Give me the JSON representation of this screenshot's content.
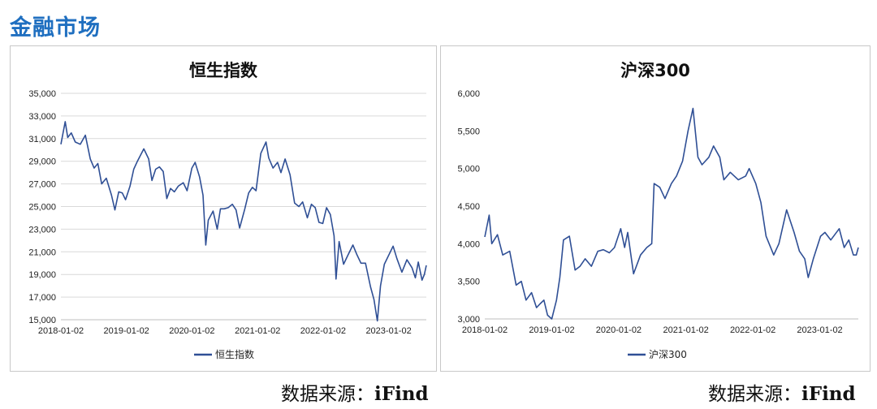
{
  "page": {
    "title": "金融市场",
    "source_label": "数据来源：",
    "source_name": "iFind"
  },
  "colors": {
    "line": "#2f4f95",
    "grid": "#d9d9d9",
    "title": "#1f6fc0"
  },
  "chart_data": [
    {
      "type": "line",
      "title": "恒生指数",
      "xlabel": "",
      "ylabel": "",
      "ylim": [
        15000,
        35000
      ],
      "y_ticks": [
        15000,
        17000,
        19000,
        21000,
        23000,
        25000,
        27000,
        29000,
        31000,
        33000,
        35000
      ],
      "y_tick_labels": [
        "15,000",
        "17,000",
        "19,000",
        "21,000",
        "23,000",
        "25,000",
        "27,000",
        "29,000",
        "31,000",
        "33,000",
        "35,000"
      ],
      "xlim": [
        "2018-01-02",
        "2023-07-31"
      ],
      "x_ticks": [
        "2018-01-02",
        "2019-01-02",
        "2020-01-02",
        "2021-01-02",
        "2022-01-02",
        "2023-01-02"
      ],
      "grid": true,
      "legend": "bottom",
      "series": [
        {
          "name": "恒生指数",
          "x": [
            "2018-01-02",
            "2018-01-26",
            "2018-02-09",
            "2018-03-01",
            "2018-03-23",
            "2018-04-20",
            "2018-05-18",
            "2018-06-15",
            "2018-07-06",
            "2018-07-27",
            "2018-08-17",
            "2018-09-12",
            "2018-10-11",
            "2018-10-30",
            "2018-11-20",
            "2018-12-10",
            "2018-12-28",
            "2019-01-22",
            "2019-02-12",
            "2019-03-04",
            "2019-04-09",
            "2019-05-06",
            "2019-05-24",
            "2019-06-14",
            "2019-07-05",
            "2019-07-26",
            "2019-08-15",
            "2019-09-05",
            "2019-09-26",
            "2019-10-18",
            "2019-11-15",
            "2019-12-06",
            "2020-01-02",
            "2020-01-20",
            "2020-02-14",
            "2020-03-04",
            "2020-03-19",
            "2020-04-02",
            "2020-04-29",
            "2020-05-22",
            "2020-06-09",
            "2020-06-30",
            "2020-07-22",
            "2020-08-14",
            "2020-09-04",
            "2020-09-24",
            "2020-10-23",
            "2020-11-13",
            "2020-12-04",
            "2020-12-24",
            "2021-01-20",
            "2021-02-18",
            "2021-03-05",
            "2021-03-29",
            "2021-04-23",
            "2021-05-12",
            "2021-06-04",
            "2021-07-02",
            "2021-07-27",
            "2021-08-20",
            "2021-09-10",
            "2021-10-06",
            "2021-10-29",
            "2021-11-19",
            "2021-12-10",
            "2021-12-31",
            "2022-01-21",
            "2022-02-11",
            "2022-03-04",
            "2022-03-15",
            "2022-04-01",
            "2022-04-26",
            "2022-05-20",
            "2022-06-17",
            "2022-07-08",
            "2022-08-01",
            "2022-08-26",
            "2022-09-23",
            "2022-10-12",
            "2022-10-31",
            "2022-11-18",
            "2022-12-09",
            "2023-01-27",
            "2023-02-17",
            "2023-03-17",
            "2023-04-14",
            "2023-05-12",
            "2023-05-31",
            "2023-06-16",
            "2023-07-07",
            "2023-07-20",
            "2023-07-31"
          ],
          "y": [
            30500,
            32500,
            31100,
            31500,
            30700,
            30500,
            31300,
            29200,
            28400,
            28800,
            27000,
            27500,
            26000,
            24700,
            26300,
            26200,
            25600,
            26800,
            28300,
            29000,
            30100,
            29200,
            27300,
            28300,
            28500,
            28100,
            25700,
            26600,
            26300,
            26800,
            27100,
            26400,
            28400,
            28900,
            27600,
            26000,
            21600,
            23800,
            24600,
            23000,
            24800,
            24800,
            24900,
            25200,
            24700,
            23100,
            24800,
            26200,
            26700,
            26400,
            29700,
            30700,
            29300,
            28400,
            28900,
            28000,
            29200,
            27800,
            25300,
            25000,
            25400,
            24000,
            25200,
            24900,
            23600,
            23500,
            24900,
            24300,
            22400,
            18600,
            21900,
            19900,
            20700,
            21600,
            20800,
            20000,
            20000,
            17900,
            16800,
            14900,
            18000,
            19900,
            21500,
            20400,
            19200,
            20300,
            19600,
            18700,
            20100,
            18500,
            19000,
            19800
          ]
        }
      ]
    },
    {
      "type": "line",
      "title": "沪深300",
      "xlabel": "",
      "ylabel": "",
      "ylim": [
        3000,
        6000
      ],
      "y_ticks": [
        3000,
        3500,
        4000,
        4500,
        5000,
        5500,
        6000
      ],
      "y_tick_labels": [
        "3,000",
        "3,500",
        "4,000",
        "4,500",
        "5,000",
        "5,500",
        "6,000"
      ],
      "xlim": [
        "2018-01-02",
        "2023-07-31"
      ],
      "x_ticks": [
        "2018-01-02",
        "2019-01-02",
        "2020-01-02",
        "2021-01-02",
        "2022-01-02",
        "2023-01-02"
      ],
      "grid": false,
      "legend": "bottom",
      "series": [
        {
          "name": "沪深300",
          "x": [
            "2018-01-02",
            "2018-01-26",
            "2018-02-09",
            "2018-03-12",
            "2018-04-10",
            "2018-05-18",
            "2018-06-22",
            "2018-07-20",
            "2018-08-15",
            "2018-09-14",
            "2018-10-11",
            "2018-10-30",
            "2018-11-20",
            "2018-12-10",
            "2019-01-02",
            "2019-01-28",
            "2019-02-15",
            "2019-03-07",
            "2019-04-08",
            "2019-05-09",
            "2019-06-05",
            "2019-07-03",
            "2019-08-06",
            "2019-09-10",
            "2019-10-10",
            "2019-11-12",
            "2019-12-10",
            "2020-01-13",
            "2020-02-03",
            "2020-02-20",
            "2020-03-23",
            "2020-04-30",
            "2020-06-03",
            "2020-06-30",
            "2020-07-13",
            "2020-08-13",
            "2020-09-10",
            "2020-10-15",
            "2020-11-12",
            "2020-12-15",
            "2021-01-14",
            "2021-02-10",
            "2021-03-09",
            "2021-03-31",
            "2021-05-07",
            "2021-06-02",
            "2021-07-06",
            "2021-07-28",
            "2021-09-01",
            "2021-10-15",
            "2021-11-24",
            "2021-12-13",
            "2022-01-18",
            "2022-02-15",
            "2022-03-15",
            "2022-04-26",
            "2022-05-24",
            "2022-07-05",
            "2022-08-15",
            "2022-09-13",
            "2022-10-12",
            "2022-10-31",
            "2022-11-28",
            "2023-01-06",
            "2023-01-30",
            "2023-03-03",
            "2023-04-18",
            "2023-05-15",
            "2023-06-09",
            "2023-07-04",
            "2023-07-20",
            "2023-07-31"
          ],
          "y": [
            4090,
            4380,
            4000,
            4120,
            3850,
            3900,
            3450,
            3500,
            3250,
            3350,
            3150,
            3200,
            3250,
            3050,
            3000,
            3250,
            3550,
            4050,
            4100,
            3650,
            3700,
            3800,
            3700,
            3900,
            3920,
            3880,
            3950,
            4200,
            3950,
            4150,
            3600,
            3850,
            3950,
            4000,
            4800,
            4750,
            4600,
            4800,
            4900,
            5100,
            5500,
            5800,
            5150,
            5050,
            5150,
            5300,
            5150,
            4850,
            4950,
            4850,
            4900,
            5000,
            4800,
            4550,
            4100,
            3850,
            4000,
            4450,
            4150,
            3900,
            3800,
            3550,
            3800,
            4100,
            4150,
            4050,
            4200,
            3950,
            4050,
            3850,
            3850,
            3950
          ]
        }
      ]
    }
  ]
}
